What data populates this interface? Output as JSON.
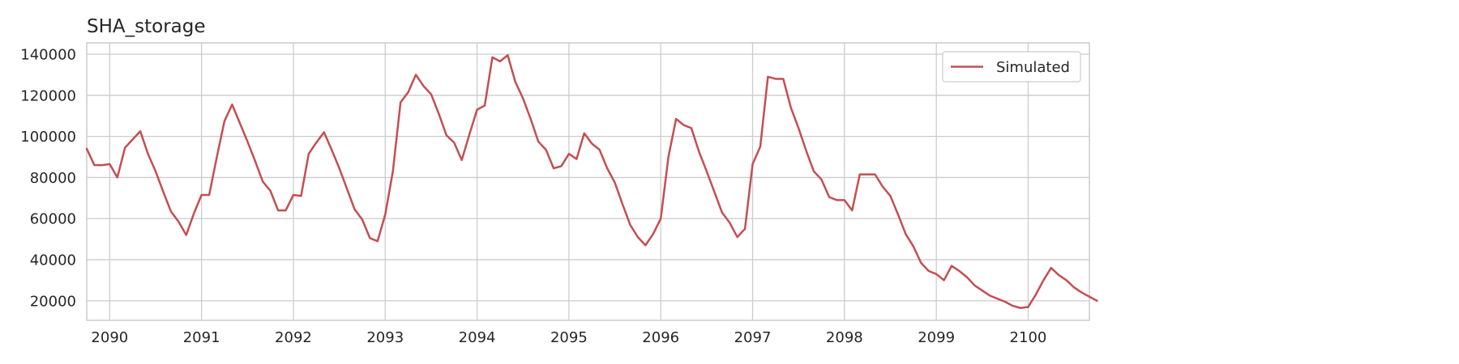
{
  "chart_data": {
    "type": "line",
    "title": "SHA_storage",
    "xlabel": "",
    "ylabel": "",
    "x_start": "2089-10",
    "x_step": "month",
    "xlim": [
      "2089-10",
      "2100-09"
    ],
    "ylim": [
      10500,
      145500
    ],
    "x_ticks": [
      "2090",
      "2091",
      "2092",
      "2093",
      "2094",
      "2095",
      "2096",
      "2097",
      "2098",
      "2099",
      "2100"
    ],
    "y_ticks": [
      "20000",
      "40000",
      "60000",
      "80000",
      "100000",
      "120000",
      "140000"
    ],
    "grid": true,
    "legend_position": "top-right",
    "colors": {
      "series": "#c44e52",
      "grid": "#cccccc",
      "axes_edge": "#cccccc",
      "text": "#262626"
    },
    "series": [
      {
        "name": "Simulated",
        "values": [
          94000,
          86000,
          86000,
          86500,
          80000,
          94500,
          98500,
          102500,
          91500,
          83000,
          73000,
          63500,
          58500,
          52000,
          62500,
          71500,
          71500,
          90000,
          107500,
          115500,
          106500,
          97500,
          88000,
          78000,
          73500,
          64000,
          64000,
          71500,
          71000,
          91500,
          97000,
          102000,
          93500,
          84500,
          74500,
          64500,
          59500,
          50500,
          49000,
          62000,
          83000,
          116500,
          121500,
          130000,
          124500,
          120500,
          111000,
          100500,
          97000,
          88500,
          101000,
          113000,
          115000,
          138500,
          136500,
          139500,
          126500,
          118500,
          108500,
          97500,
          93500,
          84500,
          85500,
          91500,
          89000,
          101500,
          96500,
          93500,
          84500,
          77500,
          67000,
          57000,
          51000,
          47000,
          52500,
          60000,
          90000,
          108500,
          105500,
          104000,
          92500,
          83000,
          73000,
          63000,
          58000,
          51000,
          55000,
          86500,
          95000,
          129000,
          128000,
          128000,
          114000,
          104000,
          93000,
          83000,
          79000,
          70500,
          69000,
          69000,
          64000,
          81500,
          81500,
          81500,
          75500,
          71000,
          62000,
          52500,
          46500,
          38500,
          34500,
          33000,
          30000,
          37000,
          34500,
          31500,
          27500,
          25000,
          22500,
          21000,
          19500,
          17500,
          16500,
          17000,
          23000,
          30000,
          36000,
          32500,
          30000,
          26500,
          24000,
          22000,
          20000
        ]
      }
    ]
  }
}
